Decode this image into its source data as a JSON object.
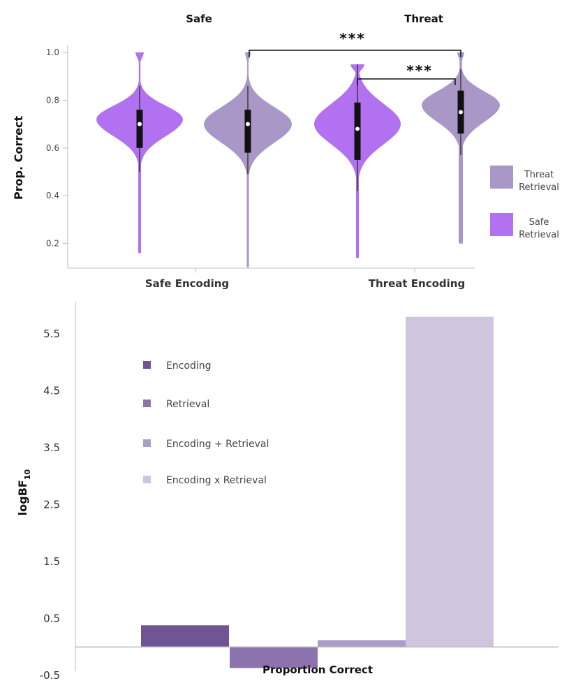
{
  "chart_data": [
    {
      "type": "violin",
      "titles": [
        "Safe",
        "Threat"
      ],
      "xlabel_groups": [
        "Safe Encoding",
        "Threat Encoding"
      ],
      "ylabel": "Prop. Correct",
      "yticks": [
        "1.0",
        "0.8",
        "0.6",
        "0.4",
        "0.2"
      ],
      "ylim": [
        0.1,
        1.0
      ],
      "legend": [
        {
          "label": "Threat\nRetrieval",
          "color": "#a897c7"
        },
        {
          "label": "Safe\nRetrieval",
          "color": "#b171f0"
        }
      ],
      "legend_position": "right",
      "violins": [
        {
          "encoding": "Safe Encoding",
          "retrieval": "Safe Retrieval",
          "color": "#b171f0",
          "min": 0.16,
          "max": 1.0,
          "q1": 0.6,
          "median": 0.7,
          "q3": 0.76,
          "whisker_low": 0.5,
          "whisker_high": 0.86
        },
        {
          "encoding": "Safe Encoding",
          "retrieval": "Threat Retrieval",
          "color": "#a897c7",
          "min": 0.1,
          "max": 1.0,
          "q1": 0.58,
          "median": 0.7,
          "q3": 0.76,
          "whisker_low": 0.49,
          "whisker_high": 0.86
        },
        {
          "encoding": "Threat Encoding",
          "retrieval": "Safe Retrieval",
          "color": "#b171f0",
          "min": 0.14,
          "max": 0.95,
          "q1": 0.55,
          "median": 0.68,
          "q3": 0.79,
          "whisker_low": 0.42,
          "whisker_high": 0.95
        },
        {
          "encoding": "Threat Encoding",
          "retrieval": "Threat Retrieval",
          "color": "#a897c7",
          "min": 0.2,
          "max": 1.0,
          "q1": 0.66,
          "median": 0.75,
          "q3": 0.84,
          "whisker_low": 0.57,
          "whisker_high": 0.93
        }
      ],
      "significance": [
        {
          "label": "***",
          "between": [
            "Safe Encoding / Threat Retrieval",
            "Threat Encoding / Threat Retrieval"
          ]
        },
        {
          "label": "***",
          "between": [
            "Threat Encoding / Safe Retrieval",
            "Threat Encoding / Threat Retrieval"
          ]
        }
      ]
    },
    {
      "type": "bar",
      "ylabel": "logBF",
      "ylabel_sub": "10",
      "xlabel": "Proportion Correct",
      "yticks": [
        "5.5",
        "4.5",
        "3.5",
        "2.5",
        "1.5",
        "0.5",
        "-0.5"
      ],
      "ylim": [
        -0.5,
        5.9
      ],
      "categories": [
        "Encoding",
        "Retrieval",
        "Encoding + Retrieval",
        "Encoding x Retrieval"
      ],
      "values": [
        0.38,
        -0.37,
        0.12,
        5.8
      ],
      "colors": [
        "#6f5593",
        "#8c73ad",
        "#ab9cc8",
        "#cfc6dd"
      ],
      "legend_position": "top-left"
    }
  ]
}
